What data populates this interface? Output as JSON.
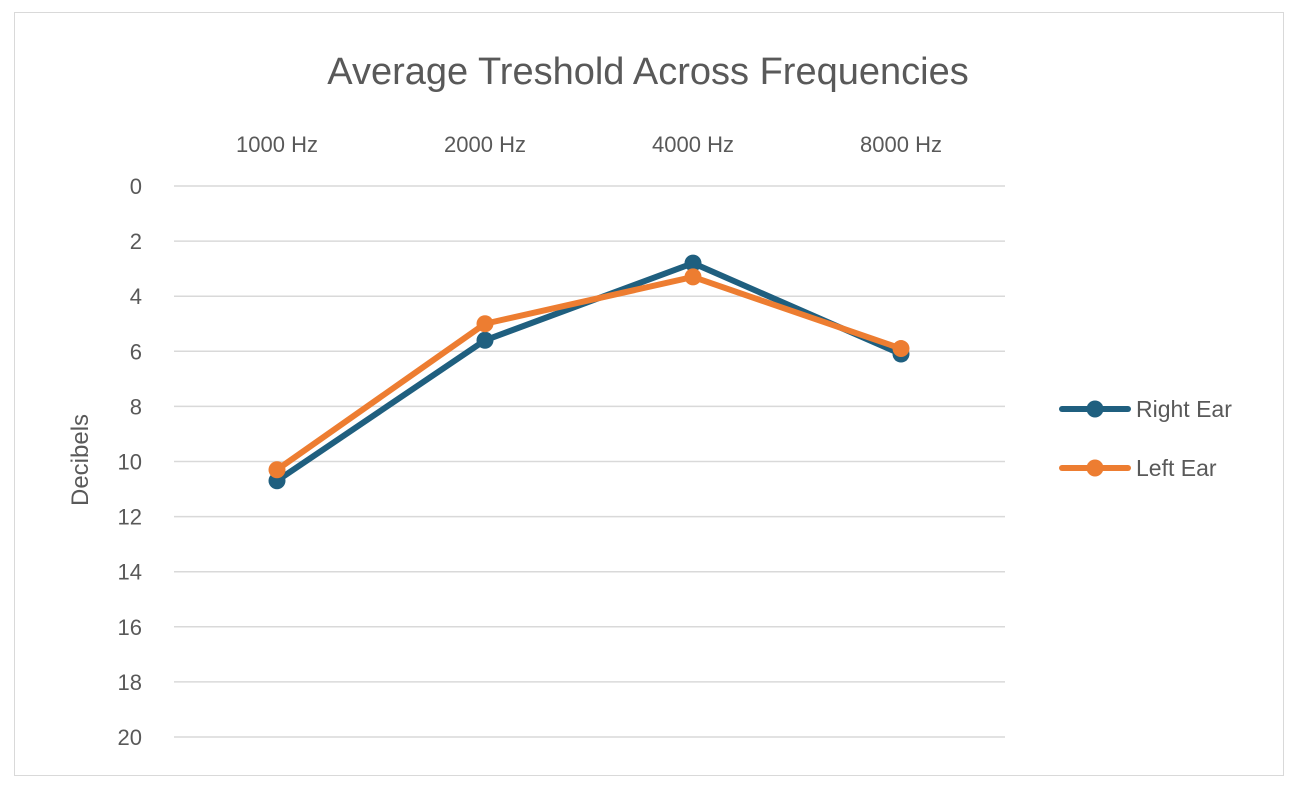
{
  "chart_data": {
    "type": "line",
    "title": "Average Treshold Across Frequencies",
    "categories": [
      "1000 Hz",
      "2000 Hz",
      "4000 Hz",
      "8000 Hz"
    ],
    "ylabel": "Decibels",
    "ylim": [
      0,
      20
    ],
    "y_reversed": true,
    "y_ticks": [
      0,
      2,
      4,
      6,
      8,
      10,
      12,
      14,
      16,
      18,
      20
    ],
    "x_axis_position": "top",
    "grid": true,
    "legend_position": "right",
    "series": [
      {
        "name": "Right Ear",
        "color": "#1f5f7f",
        "values": [
          10.7,
          5.6,
          2.8,
          6.1
        ]
      },
      {
        "name": "Left Ear",
        "color": "#ed7d31",
        "values": [
          10.3,
          5.0,
          3.3,
          5.9
        ]
      }
    ]
  }
}
